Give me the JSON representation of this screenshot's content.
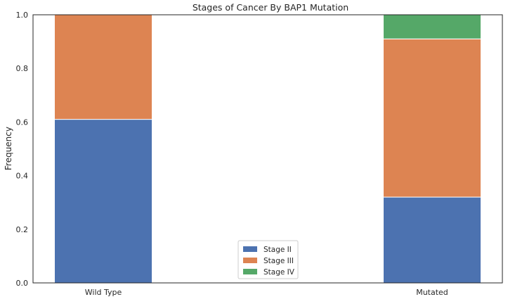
{
  "chart_data": {
    "type": "bar",
    "stacked": true,
    "title": "Stages of Cancer By BAP1 Mutation",
    "xlabel": "",
    "ylabel": "Frequency",
    "ylim": [
      0,
      1.0
    ],
    "yticks": [
      "0.0",
      "0.2",
      "0.4",
      "0.6",
      "0.8",
      "1.0"
    ],
    "categories": [
      "Wild Type",
      "Mutated"
    ],
    "series": [
      {
        "name": "Stage II",
        "color": "#4c72b0",
        "values": [
          0.61,
          0.32
        ]
      },
      {
        "name": "Stage III",
        "color": "#dd8452",
        "values": [
          0.39,
          0.59
        ]
      },
      {
        "name": "Stage IV",
        "color": "#55a868",
        "values": [
          0.0,
          0.09
        ]
      }
    ],
    "legend_position": "lower center",
    "grid": false
  }
}
